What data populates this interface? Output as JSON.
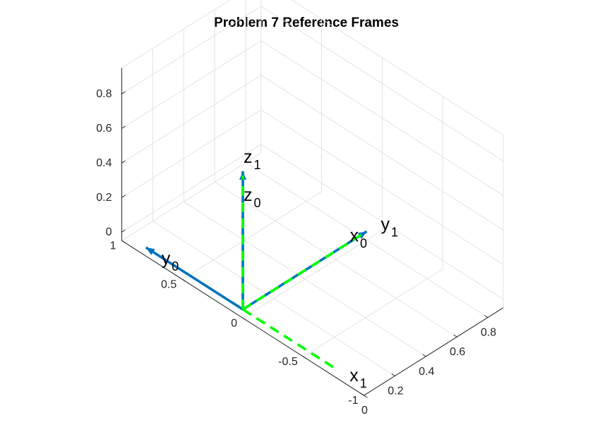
{
  "chart_data": {
    "type": "3d-quiver",
    "title": "Problem 7 Reference Frames",
    "grid": true,
    "xlim": [
      0,
      0.9
    ],
    "ylim": [
      -1,
      1
    ],
    "zlim": [
      -0.05,
      0.95
    ],
    "x_ticks": [
      "0",
      "0.2",
      "0.4",
      "0.6",
      "0.8"
    ],
    "y_ticks": [
      "1",
      "0.5",
      "0",
      "-0.5",
      "-1"
    ],
    "z_ticks": [
      "0",
      "0.2",
      "0.4",
      "0.6",
      "0.8"
    ],
    "x_tick_values": [
      0,
      0.2,
      0.4,
      0.6,
      0.8
    ],
    "y_tick_values": [
      1,
      0.5,
      0,
      -0.5,
      -1
    ],
    "z_tick_values": [
      0,
      0.2,
      0.4,
      0.6,
      0.8
    ],
    "frames": [
      {
        "color": "#0072BD",
        "line_style": "solid",
        "origin": [
          0,
          0,
          0
        ],
        "axes": [
          {
            "label": "x",
            "sub": "0",
            "vector": [
              0.8,
              0,
              0
            ]
          },
          {
            "label": "y",
            "sub": "0",
            "vector": [
              0,
              0.8,
              0
            ]
          },
          {
            "label": "z",
            "sub": "0",
            "vector": [
              0,
              0,
              0.8
            ]
          }
        ]
      },
      {
        "color": "#00FF00",
        "line_style": "dashed",
        "origin": [
          0,
          0,
          0
        ],
        "axes": [
          {
            "label": "x",
            "sub": "1",
            "vector": [
              0,
              -0.8,
              0
            ]
          },
          {
            "label": "y",
            "sub": "1",
            "vector": [
              0.8,
              0,
              0
            ]
          },
          {
            "label": "z",
            "sub": "1",
            "vector": [
              0,
              0,
              0.8
            ]
          }
        ]
      }
    ]
  }
}
